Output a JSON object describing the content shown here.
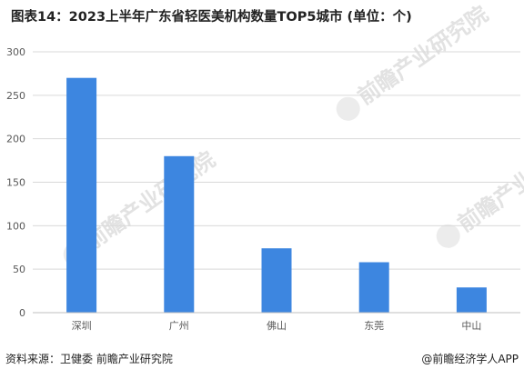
{
  "title": "图表14：2023上半年广东省轻医美机构数量TOP5城市 (单位：个)",
  "source": "资料来源：卫健委 前瞻产业研究院",
  "brand": "@前瞻经济学人APP",
  "watermark": "前瞻产业研究院",
  "colors": {
    "bar": "#3d86e0",
    "grid": "#d9d9d9",
    "axis": "#bfbfbf",
    "tick": "#595959"
  },
  "chart_data": {
    "type": "bar",
    "categories": [
      "深圳",
      "广州",
      "佛山",
      "东莞",
      "中山"
    ],
    "values": [
      270,
      180,
      74,
      58,
      29
    ],
    "ylim": [
      0,
      300
    ],
    "yticks": [
      0,
      50,
      100,
      150,
      200,
      250,
      300
    ],
    "grid": true,
    "legend": false
  }
}
